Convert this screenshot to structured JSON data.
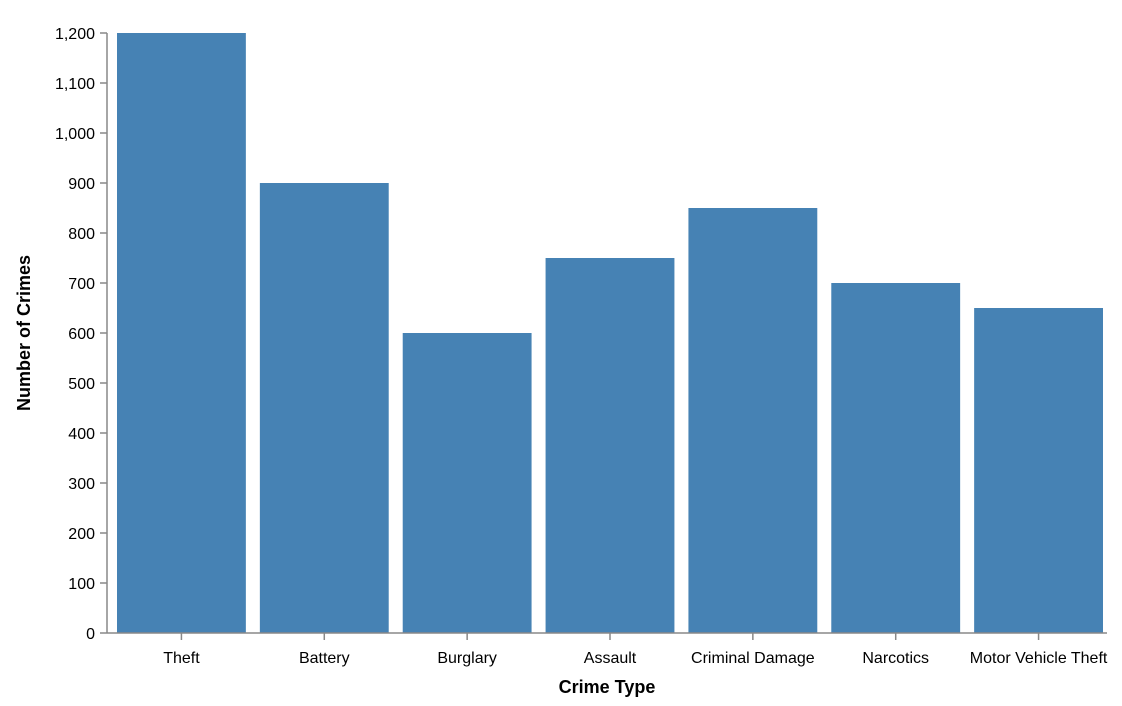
{
  "chart_data": {
    "type": "bar",
    "categories": [
      "Theft",
      "Battery",
      "Burglary",
      "Assault",
      "Criminal Damage",
      "Narcotics",
      "Motor Vehicle Theft"
    ],
    "values": [
      1200,
      900,
      600,
      750,
      850,
      700,
      650
    ],
    "xlabel": "Crime Type",
    "ylabel": "Number of Crimes",
    "ylim": [
      0,
      1200
    ],
    "yticks": [
      0,
      100,
      200,
      300,
      400,
      500,
      600,
      700,
      800,
      900,
      1000,
      1100,
      1200
    ],
    "ytick_labels": [
      "0",
      "100",
      "200",
      "300",
      "400",
      "500",
      "600",
      "700",
      "800",
      "900",
      "1,000",
      "1,100",
      "1,200"
    ],
    "grid": false,
    "bar_color": "#4682b4",
    "axis_color": "#888888"
  }
}
